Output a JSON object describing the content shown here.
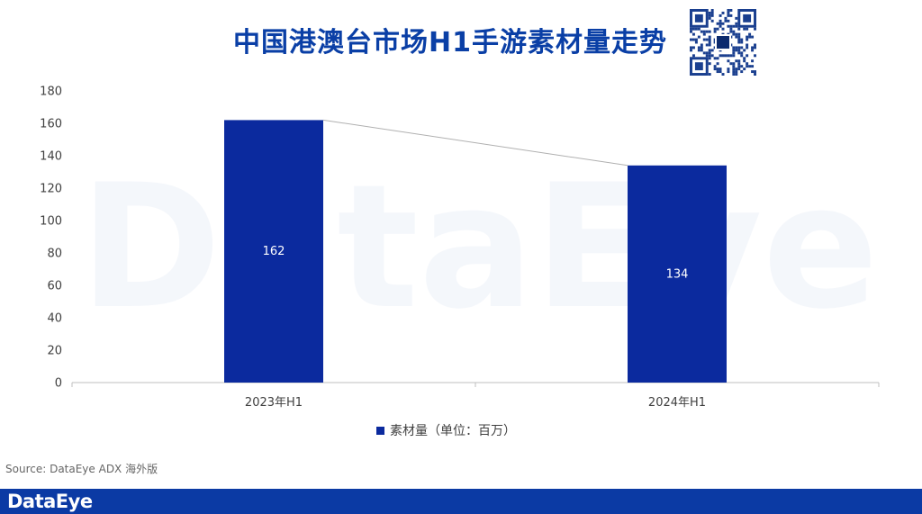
{
  "title": "中国港澳台市场H1手游素材量走势",
  "source": "Source: DataEye ADX 海外版",
  "footer_logo": "DataEye",
  "watermark": "DataEye",
  "colors": {
    "bar": "#0b2a9e",
    "title": "#0a3fa6",
    "footer": "#0b3aa4",
    "connector": "#b0b0b0"
  },
  "chart_data": {
    "type": "bar",
    "categories": [
      "2023年H1",
      "2024年H1"
    ],
    "series": [
      {
        "name": "素材量（单位：百万）",
        "values": [
          162,
          134
        ]
      }
    ],
    "yticks": [
      0,
      20,
      40,
      60,
      80,
      100,
      120,
      140,
      160,
      180
    ],
    "ylim": [
      0,
      180
    ],
    "data_labels": true,
    "legend": "bottom",
    "grid": false
  }
}
